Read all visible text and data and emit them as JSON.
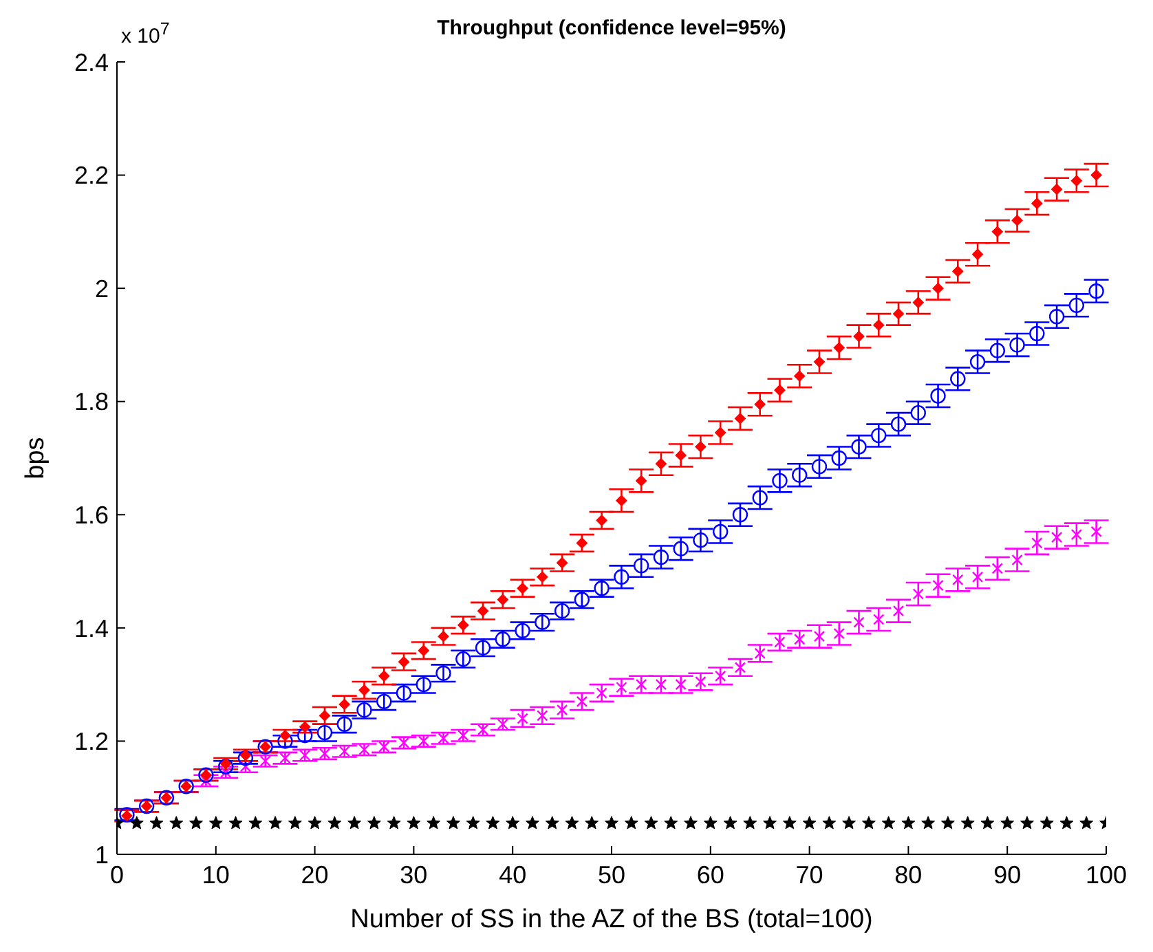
{
  "chart_data": {
    "type": "scatter",
    "title": "Throughput (confidence level=95%)",
    "xlabel": "Number of SS in the AZ of the BS (total=100)",
    "ylabel": "bps",
    "annotations": [
      "x 10$^{7}$"
    ],
    "x": [
      1,
      3,
      5,
      7,
      9,
      11,
      13,
      15,
      17,
      19,
      21,
      23,
      25,
      27,
      29,
      31,
      33,
      35,
      37,
      39,
      41,
      43,
      45,
      47,
      49,
      51,
      53,
      55,
      57,
      59,
      61,
      63,
      65,
      67,
      69,
      71,
      73,
      75,
      77,
      79,
      81,
      83,
      85,
      87,
      89,
      91,
      93,
      95,
      97,
      99
    ],
    "xlim": [
      0,
      100
    ],
    "xticks": [
      0,
      10,
      20,
      30,
      40,
      50,
      60,
      70,
      80,
      90,
      100
    ],
    "ylim": [
      1,
      2.4
    ],
    "yticks": [
      1,
      1.2,
      1.4,
      1.6,
      1.8,
      2,
      2.2,
      2.4
    ],
    "series": [
      {
        "color": "#ff0000",
        "marker": "diamond",
        "values": [
          1.068,
          1.085,
          1.1,
          1.12,
          1.14,
          1.16,
          1.175,
          1.19,
          1.21,
          1.225,
          1.245,
          1.265,
          1.29,
          1.315,
          1.34,
          1.36,
          1.385,
          1.405,
          1.43,
          1.45,
          1.47,
          1.49,
          1.515,
          1.55,
          1.59,
          1.625,
          1.66,
          1.69,
          1.705,
          1.72,
          1.745,
          1.77,
          1.795,
          1.82,
          1.845,
          1.87,
          1.895,
          1.915,
          1.935,
          1.955,
          1.975,
          2.0,
          2.03,
          2.06,
          2.1,
          2.12,
          2.15,
          2.175,
          2.19,
          2.2
        ],
        "errors": [
          0.01,
          0.01,
          0.01,
          0.01,
          0.01,
          0.01,
          0.01,
          0.01,
          0.01,
          0.01,
          0.015,
          0.015,
          0.015,
          0.015,
          0.015,
          0.015,
          0.015,
          0.015,
          0.015,
          0.015,
          0.015,
          0.015,
          0.015,
          0.015,
          0.015,
          0.02,
          0.02,
          0.02,
          0.02,
          0.02,
          0.02,
          0.02,
          0.02,
          0.02,
          0.02,
          0.02,
          0.02,
          0.02,
          0.02,
          0.02,
          0.02,
          0.02,
          0.02,
          0.02,
          0.02,
          0.02,
          0.02,
          0.02,
          0.02,
          0.02
        ]
      },
      {
        "color": "#0000ff",
        "marker": "circle",
        "values": [
          1.07,
          1.085,
          1.1,
          1.12,
          1.14,
          1.155,
          1.17,
          1.19,
          1.2,
          1.21,
          1.215,
          1.23,
          1.255,
          1.27,
          1.285,
          1.3,
          1.32,
          1.345,
          1.365,
          1.38,
          1.395,
          1.41,
          1.43,
          1.45,
          1.47,
          1.49,
          1.51,
          1.525,
          1.54,
          1.555,
          1.57,
          1.6,
          1.63,
          1.66,
          1.67,
          1.685,
          1.7,
          1.72,
          1.74,
          1.76,
          1.78,
          1.81,
          1.84,
          1.87,
          1.89,
          1.9,
          1.92,
          1.95,
          1.97,
          1.995
        ],
        "errors": [
          0.01,
          0.01,
          0.01,
          0.01,
          0.01,
          0.01,
          0.01,
          0.01,
          0.01,
          0.01,
          0.015,
          0.015,
          0.015,
          0.015,
          0.015,
          0.015,
          0.015,
          0.015,
          0.015,
          0.015,
          0.015,
          0.015,
          0.015,
          0.015,
          0.015,
          0.02,
          0.02,
          0.02,
          0.02,
          0.02,
          0.02,
          0.02,
          0.02,
          0.02,
          0.02,
          0.02,
          0.02,
          0.02,
          0.02,
          0.02,
          0.02,
          0.02,
          0.02,
          0.02,
          0.02,
          0.02,
          0.02,
          0.02,
          0.02,
          0.02
        ]
      },
      {
        "color": "#ff00ff",
        "marker": "cross",
        "values": [
          null,
          null,
          null,
          null,
          1.13,
          1.145,
          1.155,
          1.165,
          1.17,
          1.175,
          1.178,
          1.182,
          1.185,
          1.19,
          1.197,
          1.2,
          1.205,
          1.21,
          1.22,
          1.23,
          1.24,
          1.245,
          1.255,
          1.27,
          1.285,
          1.295,
          1.3,
          1.3,
          1.3,
          1.305,
          1.315,
          1.33,
          1.355,
          1.375,
          1.38,
          1.385,
          1.39,
          1.41,
          1.415,
          1.43,
          1.46,
          1.475,
          1.485,
          1.49,
          1.505,
          1.52,
          1.55,
          1.56,
          1.565,
          1.57
        ],
        "errors": [
          null,
          null,
          null,
          null,
          0.01,
          0.01,
          0.01,
          0.01,
          0.01,
          0.01,
          0.01,
          0.01,
          0.01,
          0.01,
          0.01,
          0.01,
          0.01,
          0.01,
          0.01,
          0.01,
          0.015,
          0.015,
          0.015,
          0.015,
          0.015,
          0.015,
          0.015,
          0.015,
          0.015,
          0.015,
          0.015,
          0.015,
          0.015,
          0.015,
          0.015,
          0.02,
          0.02,
          0.02,
          0.02,
          0.02,
          0.02,
          0.02,
          0.02,
          0.02,
          0.02,
          0.02,
          0.02,
          0.02,
          0.02,
          0.02
        ]
      },
      {
        "color": "#000000",
        "marker": "star",
        "x": [
          0,
          2,
          4,
          6,
          8,
          10,
          12,
          14,
          16,
          18,
          20,
          22,
          24,
          26,
          28,
          30,
          32,
          34,
          36,
          38,
          40,
          42,
          44,
          46,
          48,
          50,
          52,
          54,
          56,
          58,
          60,
          62,
          64,
          66,
          68,
          70,
          72,
          74,
          76,
          78,
          80,
          82,
          84,
          86,
          88,
          90,
          92,
          94,
          96,
          98,
          100
        ],
        "values": [
          1.055,
          1.055,
          1.055,
          1.055,
          1.055,
          1.055,
          1.055,
          1.055,
          1.055,
          1.055,
          1.055,
          1.055,
          1.055,
          1.055,
          1.055,
          1.055,
          1.055,
          1.055,
          1.055,
          1.055,
          1.055,
          1.055,
          1.055,
          1.055,
          1.055,
          1.055,
          1.055,
          1.055,
          1.055,
          1.055,
          1.055,
          1.055,
          1.055,
          1.055,
          1.055,
          1.055,
          1.055,
          1.055,
          1.055,
          1.055,
          1.055,
          1.055,
          1.055,
          1.055,
          1.055,
          1.055,
          1.055,
          1.055,
          1.055,
          1.055,
          1.055
        ]
      }
    ]
  }
}
